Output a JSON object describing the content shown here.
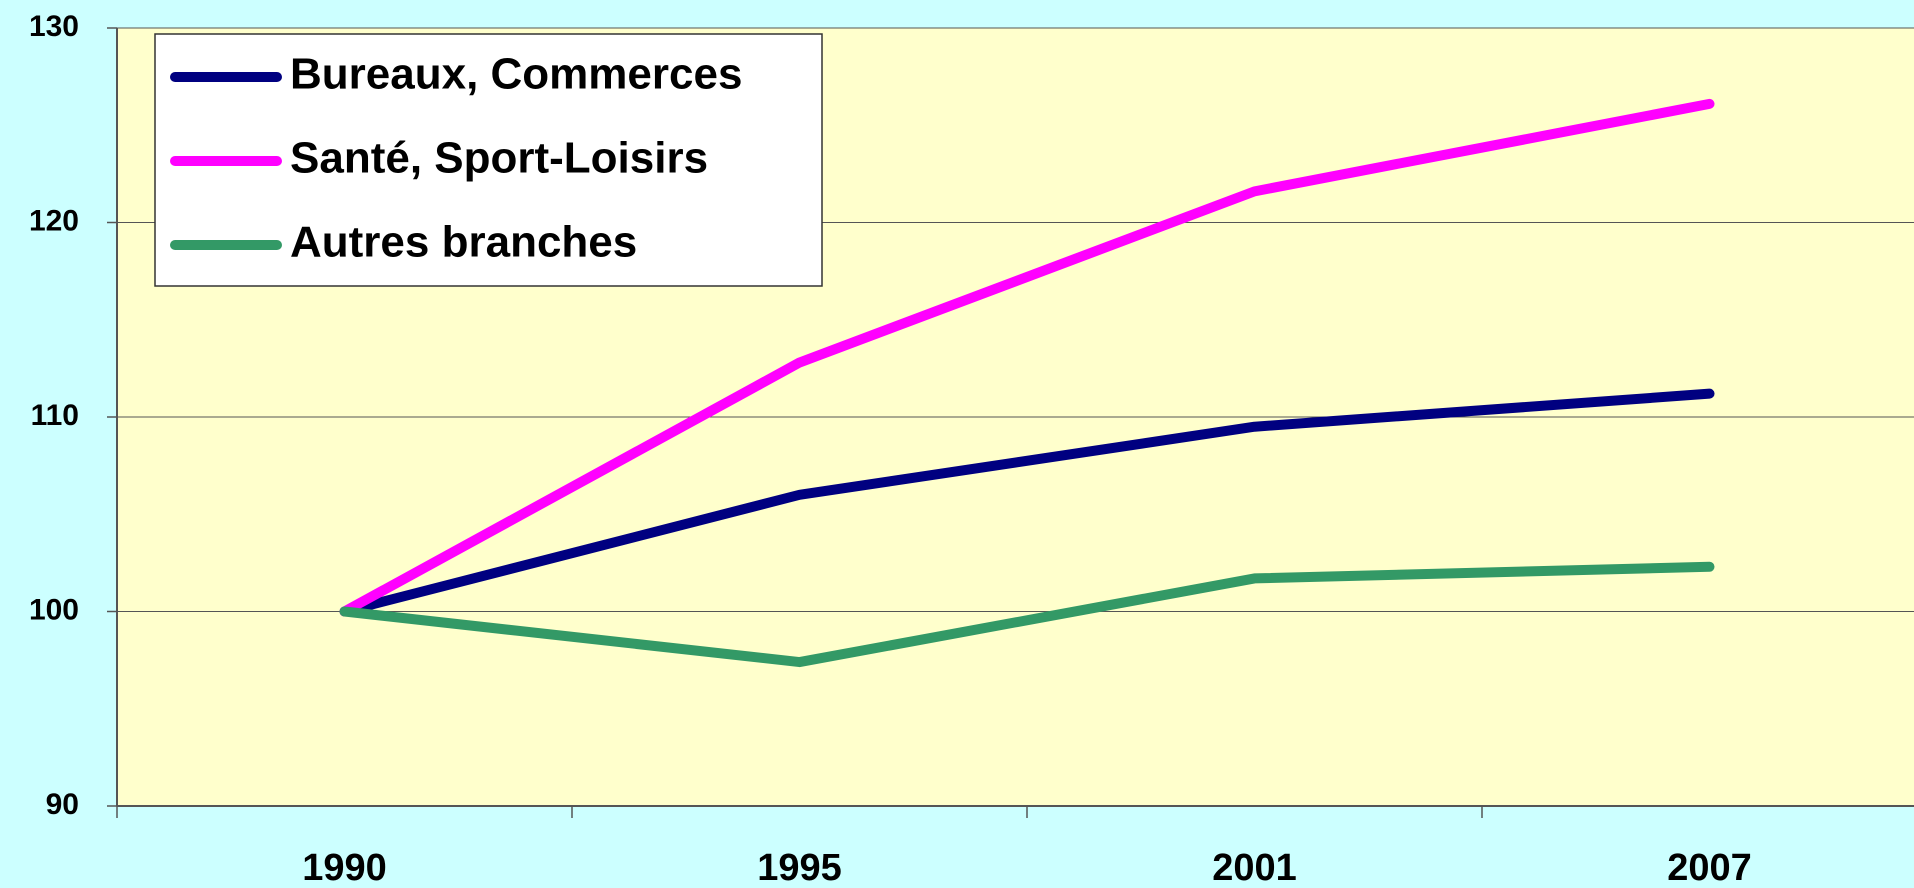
{
  "chart_data": {
    "type": "line",
    "categories": [
      "1990",
      "1995",
      "2001",
      "2007"
    ],
    "series": [
      {
        "name": "Bureaux, Commerces",
        "color": "#000080",
        "values": [
          100,
          106,
          109.5,
          111.2
        ]
      },
      {
        "name": "Santé, Sport-Loisirs",
        "color": "#ff00ff",
        "values": [
          100,
          112.8,
          121.6,
          126.1
        ]
      },
      {
        "name": "Autres branches",
        "color": "#339966",
        "values": [
          100,
          97.4,
          101.7,
          102.3
        ]
      }
    ],
    "ylim": [
      90,
      130
    ],
    "yticks": [
      90,
      100,
      110,
      120,
      130
    ],
    "grid": true,
    "legend": "top-left"
  }
}
